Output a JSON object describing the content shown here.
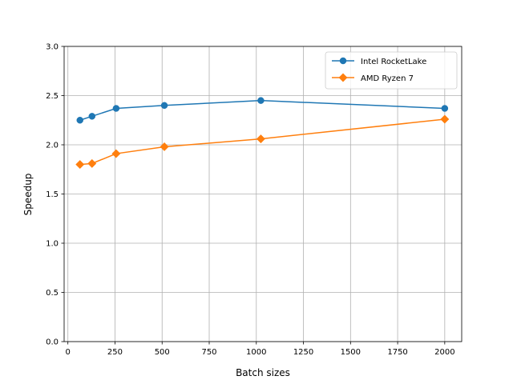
{
  "chart_data": {
    "type": "line",
    "title": "",
    "xlabel": "Batch sizes",
    "ylabel": "Speedup",
    "xlim": [
      -20,
      2090
    ],
    "ylim": [
      0.0,
      3.0
    ],
    "xticks": [
      0,
      250,
      500,
      750,
      1000,
      1250,
      1500,
      1750,
      2000
    ],
    "yticks": [
      "0.0",
      "0.5",
      "1.0",
      "1.5",
      "2.0",
      "2.5",
      "3.0"
    ],
    "grid": true,
    "legend_position": "top-right",
    "series": [
      {
        "name": "Intel RocketLake",
        "color": "#1f77b4",
        "marker": "circle",
        "x": [
          64,
          128,
          256,
          512,
          1024,
          2000
        ],
        "y": [
          2.25,
          2.29,
          2.37,
          2.4,
          2.45,
          2.37
        ]
      },
      {
        "name": "AMD Ryzen 7",
        "color": "#ff7f0e",
        "marker": "diamond",
        "x": [
          64,
          128,
          256,
          512,
          1024,
          2000
        ],
        "y": [
          1.8,
          1.81,
          1.91,
          1.98,
          2.06,
          2.26
        ]
      }
    ]
  }
}
